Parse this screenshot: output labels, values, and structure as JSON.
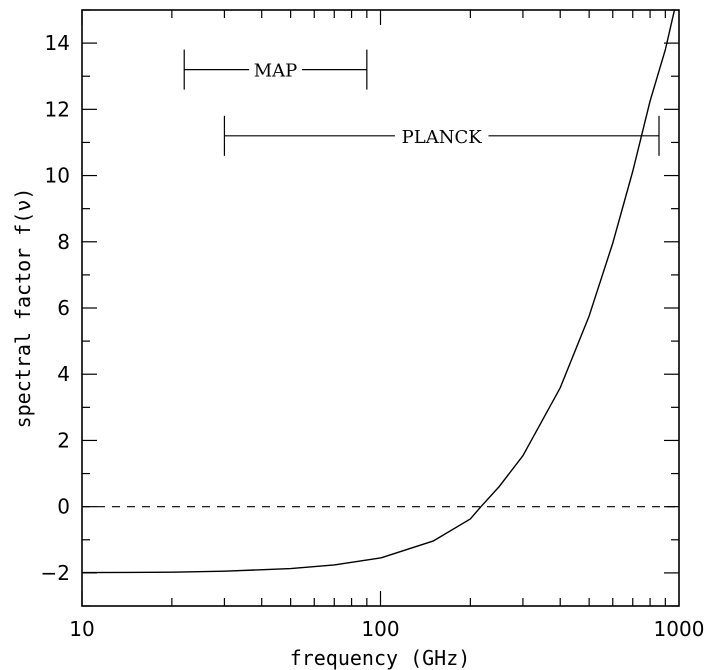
{
  "chart_data": {
    "type": "line",
    "xlabel": "frequency (GHz)",
    "ylabel": "spectral factor f(ν)",
    "xscale": "log",
    "xlim": [
      10,
      1000
    ],
    "ylim": [
      -3,
      15
    ],
    "grid": false,
    "x_tick_labels": [
      "10",
      "100",
      "1000"
    ],
    "y_tick_labels": [
      "−2",
      "0",
      "2",
      "4",
      "6",
      "8",
      "10",
      "12",
      "14"
    ],
    "reference_line": {
      "y": 0,
      "style": "dashed"
    },
    "ranges": [
      {
        "label": "MAP",
        "x_start": 22,
        "x_end": 90,
        "y": 13.2
      },
      {
        "label": "PLANCK",
        "x_start": 30,
        "x_end": 857,
        "y": 11.2
      }
    ],
    "series": [
      {
        "x": [
          10,
          20,
          30,
          50,
          70,
          100,
          150,
          200,
          217,
          250,
          300,
          400,
          500,
          600,
          700,
          800,
          900,
          1000
        ],
        "y": [
          -1.99,
          -1.98,
          -1.95,
          -1.87,
          -1.76,
          -1.55,
          -1.04,
          -0.37,
          0.0,
          0.61,
          1.54,
          3.59,
          5.76,
          7.96,
          10.13,
          12.25,
          13.8,
          15.6
        ]
      }
    ]
  }
}
